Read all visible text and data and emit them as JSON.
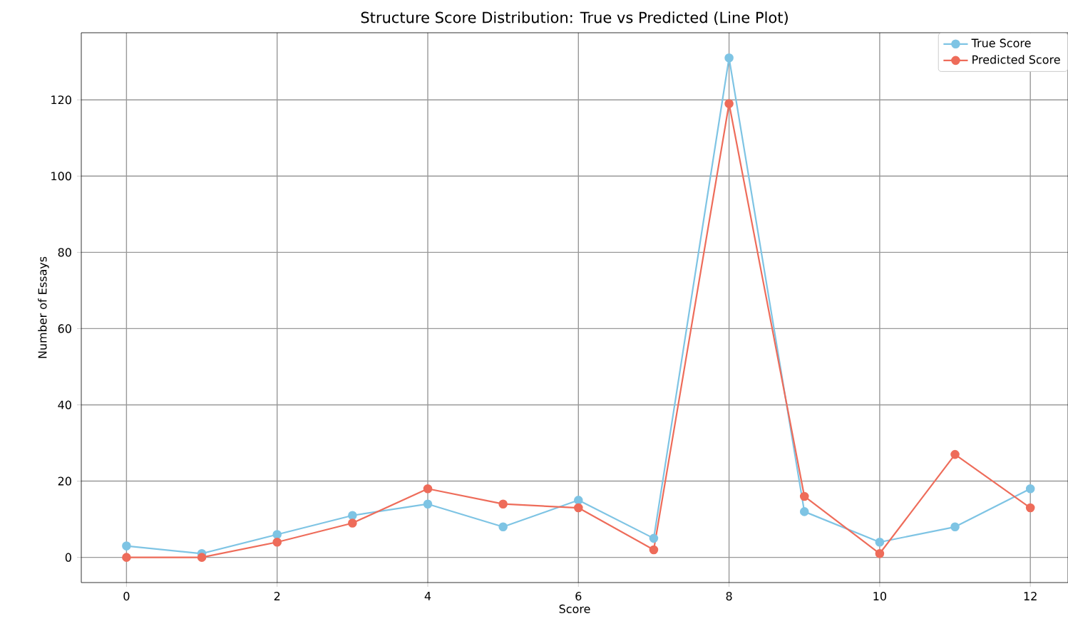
{
  "chart_data": {
    "type": "line",
    "title": "Structure Score Distribution: True vs Predicted (Line Plot)",
    "xlabel": "Score",
    "ylabel": "Number of Essays",
    "x": [
      0,
      1,
      2,
      3,
      4,
      5,
      6,
      7,
      8,
      9,
      10,
      11,
      12
    ],
    "series": [
      {
        "name": "True Score",
        "color": "#7ec4e4",
        "values": [
          3,
          1,
          6,
          11,
          14,
          8,
          15,
          5,
          131,
          12,
          4,
          8,
          18
        ]
      },
      {
        "name": "Predicted Score",
        "color": "#ee6c5a",
        "values": [
          0,
          0,
          4,
          9,
          18,
          14,
          13,
          2,
          119,
          16,
          1,
          27,
          13
        ]
      }
    ],
    "xlim": [
      -0.6,
      12.5
    ],
    "ylim": [
      -6.6,
      137.6
    ],
    "xticks": [
      0,
      2,
      4,
      6,
      8,
      10,
      12
    ],
    "yticks": [
      0,
      20,
      40,
      60,
      80,
      100,
      120
    ],
    "grid": true,
    "legend": "top right",
    "marker": "circle",
    "line_style": "solid"
  }
}
